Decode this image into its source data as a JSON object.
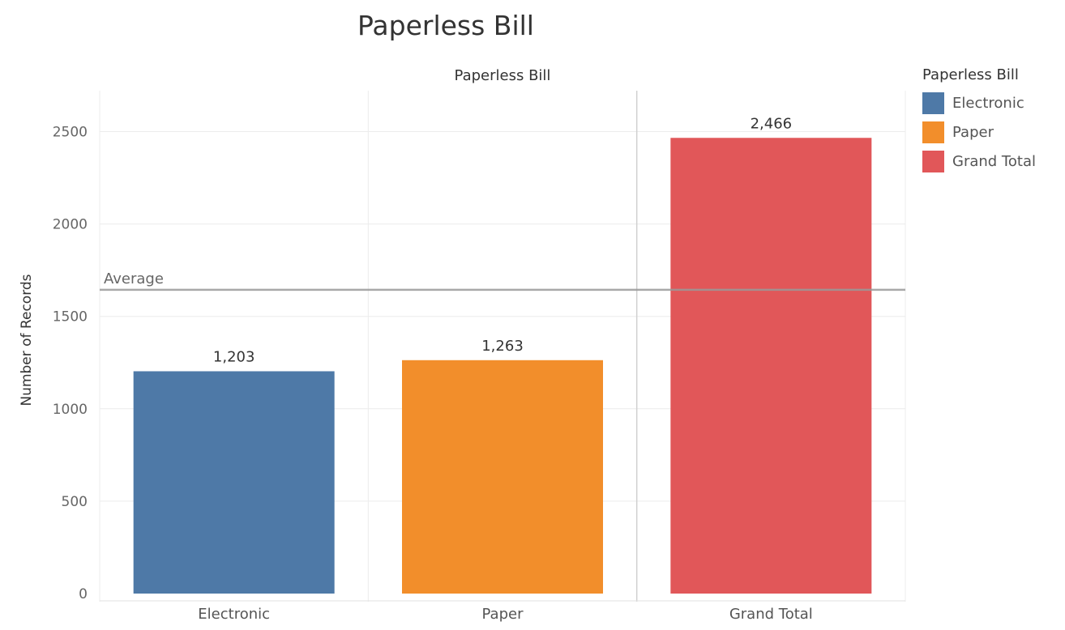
{
  "chart_data": {
    "type": "bar",
    "title": "Paperless Bill",
    "header_label": "Paperless Bill",
    "xlabel": "",
    "ylabel": "Number of Records",
    "categories": [
      "Electronic",
      "Paper",
      "Grand Total"
    ],
    "values": [
      1203,
      1263,
      2466
    ],
    "data_labels": [
      "1,203",
      "1,263",
      "2,466"
    ],
    "colors": [
      "#4e79a7",
      "#f28e2b",
      "#e15759"
    ],
    "ylim": [
      0,
      2700
    ],
    "yticks": [
      0,
      500,
      1000,
      1500,
      2000,
      2500
    ],
    "reference_line": {
      "label": "Average",
      "value": 1644,
      "color": "#999999"
    },
    "legend": {
      "title": "Paperless Bill",
      "position": "right",
      "items": [
        {
          "label": "Electronic",
          "color": "#4e79a7"
        },
        {
          "label": "Paper",
          "color": "#f28e2b"
        },
        {
          "label": "Grand Total",
          "color": "#e15759"
        }
      ]
    },
    "grid": true
  }
}
